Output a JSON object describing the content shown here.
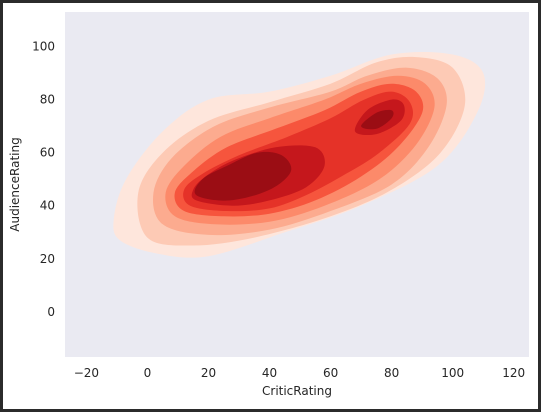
{
  "chart_data": {
    "type": "kde-contour",
    "title": "",
    "xlabel": "CriticRating",
    "ylabel": "AudienceRating",
    "xlim": [
      -27,
      125
    ],
    "ylim": [
      -17,
      113
    ],
    "xticks": [
      -20,
      0,
      20,
      40,
      60,
      80,
      100,
      120
    ],
    "yticks": [
      0,
      20,
      40,
      60,
      80,
      100
    ],
    "grid": false,
    "background": "#eaeaf2",
    "palette": [
      "#fee6dc",
      "#fdcab5",
      "#fcab8f",
      "#fc8a6a",
      "#f6553d",
      "#e53228",
      "#c5171c",
      "#9b0d14"
    ],
    "levels": [
      {
        "level": 1,
        "color": "#fee6dc",
        "polygon": [
          [
            -9,
            27
          ],
          [
            3,
            22
          ],
          [
            20,
            21
          ],
          [
            45,
            30
          ],
          [
            70,
            40
          ],
          [
            95,
            55
          ],
          [
            108,
            75
          ],
          [
            110,
            90
          ],
          [
            100,
            97
          ],
          [
            80,
            97
          ],
          [
            60,
            89
          ],
          [
            40,
            83
          ],
          [
            20,
            80
          ],
          [
            5,
            68
          ],
          [
            -7,
            50
          ],
          [
            -11,
            35
          ]
        ]
      },
      {
        "level": 2,
        "color": "#fdcab5",
        "polygon": [
          [
            0,
            28
          ],
          [
            15,
            25
          ],
          [
            35,
            28
          ],
          [
            60,
            36
          ],
          [
            80,
            46
          ],
          [
            96,
            60
          ],
          [
            104,
            78
          ],
          [
            100,
            92
          ],
          [
            88,
            96
          ],
          [
            75,
            94
          ],
          [
            60,
            86
          ],
          [
            40,
            79
          ],
          [
            20,
            72
          ],
          [
            5,
            60
          ],
          [
            -3,
            45
          ]
        ]
      },
      {
        "level": 3,
        "color": "#fcab8f",
        "polygon": [
          [
            5,
            33
          ],
          [
            20,
            29
          ],
          [
            40,
            31
          ],
          [
            60,
            38
          ],
          [
            80,
            48
          ],
          [
            92,
            62
          ],
          [
            98,
            78
          ],
          [
            95,
            88
          ],
          [
            85,
            92
          ],
          [
            72,
            89
          ],
          [
            60,
            83
          ],
          [
            40,
            77
          ],
          [
            22,
            70
          ],
          [
            8,
            58
          ],
          [
            2,
            45
          ]
        ]
      },
      {
        "level": 4,
        "color": "#fc8a6a",
        "polygon": [
          [
            9,
            36
          ],
          [
            22,
            33
          ],
          [
            40,
            34
          ],
          [
            58,
            40
          ],
          [
            76,
            50
          ],
          [
            88,
            63
          ],
          [
            94,
            77
          ],
          [
            91,
            86
          ],
          [
            82,
            89
          ],
          [
            70,
            86
          ],
          [
            58,
            80
          ],
          [
            40,
            73
          ],
          [
            24,
            66
          ],
          [
            12,
            55
          ],
          [
            6,
            45
          ]
        ]
      },
      {
        "level": 5,
        "color": "#f6553d",
        "polygon": [
          [
            12,
            38
          ],
          [
            25,
            36
          ],
          [
            40,
            37
          ],
          [
            55,
            42
          ],
          [
            70,
            51
          ],
          [
            82,
            62
          ],
          [
            90,
            75
          ],
          [
            88,
            83
          ],
          [
            80,
            86
          ],
          [
            70,
            83
          ],
          [
            58,
            76
          ],
          [
            42,
            69
          ],
          [
            26,
            62
          ],
          [
            15,
            53
          ],
          [
            9,
            45
          ]
        ]
      },
      {
        "level": 6,
        "color": "#e53228",
        "polygon": [
          [
            14,
            40
          ],
          [
            26,
            38
          ],
          [
            40,
            39
          ],
          [
            52,
            44
          ],
          [
            65,
            52
          ],
          [
            76,
            60
          ],
          [
            86,
            71
          ],
          [
            86,
            79
          ],
          [
            80,
            83
          ],
          [
            71,
            80
          ],
          [
            60,
            73
          ],
          [
            46,
            66
          ],
          [
            30,
            59
          ],
          [
            18,
            52
          ],
          [
            12,
            46
          ]
        ]
      },
      {
        "level": 7,
        "color": "#c5171c",
        "polygon": [
          [
            16,
            42
          ],
          [
            28,
            40
          ],
          [
            40,
            42
          ],
          [
            52,
            47
          ],
          [
            58,
            55
          ],
          [
            55,
            62
          ],
          [
            42,
            62
          ],
          [
            28,
            57
          ],
          [
            19,
            51
          ],
          [
            15,
            46
          ]
        ]
      },
      {
        "level": 7,
        "color": "#c5171c",
        "polygon": [
          [
            68,
            68
          ],
          [
            75,
            67
          ],
          [
            83,
            72
          ],
          [
            84,
            78
          ],
          [
            80,
            80
          ],
          [
            72,
            76
          ]
        ]
      },
      {
        "level": 8,
        "color": "#9b0d14",
        "polygon": [
          [
            16,
            44
          ],
          [
            27,
            42
          ],
          [
            40,
            46
          ],
          [
            47,
            53
          ],
          [
            44,
            59
          ],
          [
            36,
            60
          ],
          [
            26,
            55
          ],
          [
            18,
            50
          ]
        ]
      },
      {
        "level": 8,
        "color": "#9b0d14",
        "polygon": [
          [
            70,
            70
          ],
          [
            75,
            69
          ],
          [
            80,
            73
          ],
          [
            80,
            76
          ],
          [
            75,
            75
          ]
        ]
      }
    ]
  }
}
